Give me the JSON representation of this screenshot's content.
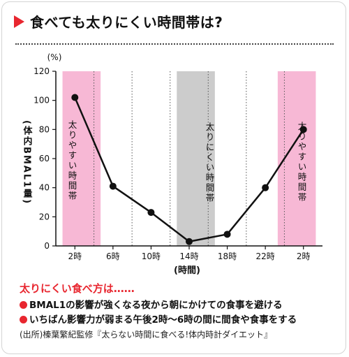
{
  "header": {
    "title": "食べても太りにくい時間帯は?"
  },
  "chart_data": {
    "type": "line",
    "title": "食べても太りにくい時間帯は?",
    "ylabel": "(体内BMAL1量)",
    "yunit": "(%)",
    "xlabel": "(時間)",
    "ylim": [
      0,
      120
    ],
    "yticks": [
      0,
      20,
      40,
      60,
      80,
      100,
      120
    ],
    "xticks": [
      "2時",
      "6時",
      "10時",
      "14時",
      "18時",
      "22時",
      "2時"
    ],
    "series": [
      {
        "values": [
          {
            "x": 0,
            "y": 102
          },
          {
            "x": 4,
            "y": 41
          },
          {
            "x": 8,
            "y": 23
          },
          {
            "x": 12,
            "y": 3
          },
          {
            "x": 16,
            "y": 8
          },
          {
            "x": 20,
            "y": 40
          },
          {
            "x": 24,
            "y": 80
          }
        ]
      }
    ],
    "bands": [
      {
        "from": -1.3,
        "to": 2.7,
        "color": "#f7b8d5",
        "label": "太りやすい時間帯"
      },
      {
        "from": 10.7,
        "to": 14.7,
        "color": "#cccccc",
        "label": "太りにくい時間帯"
      },
      {
        "from": 21.3,
        "to": 25.3,
        "color": "#f7b8d5",
        "label": "太りやすい時間帯"
      }
    ],
    "grid": "vertical-dotted"
  },
  "notes": {
    "title": "太りにくい食べ方は……",
    "items": [
      "BMAL1の影響が強くなる夜から朝にかけての食事を避ける",
      "いちばん影響力が弱まる午後2時〜6時の間に間食や食事をする"
    ]
  },
  "source": "(出所)榛葉繁紀監修『太らない時間に食べる!体内時計ダイエット』",
  "colors": {
    "accent": "#e8262f",
    "pink": "#f7b8d5",
    "gray": "#cccccc"
  }
}
